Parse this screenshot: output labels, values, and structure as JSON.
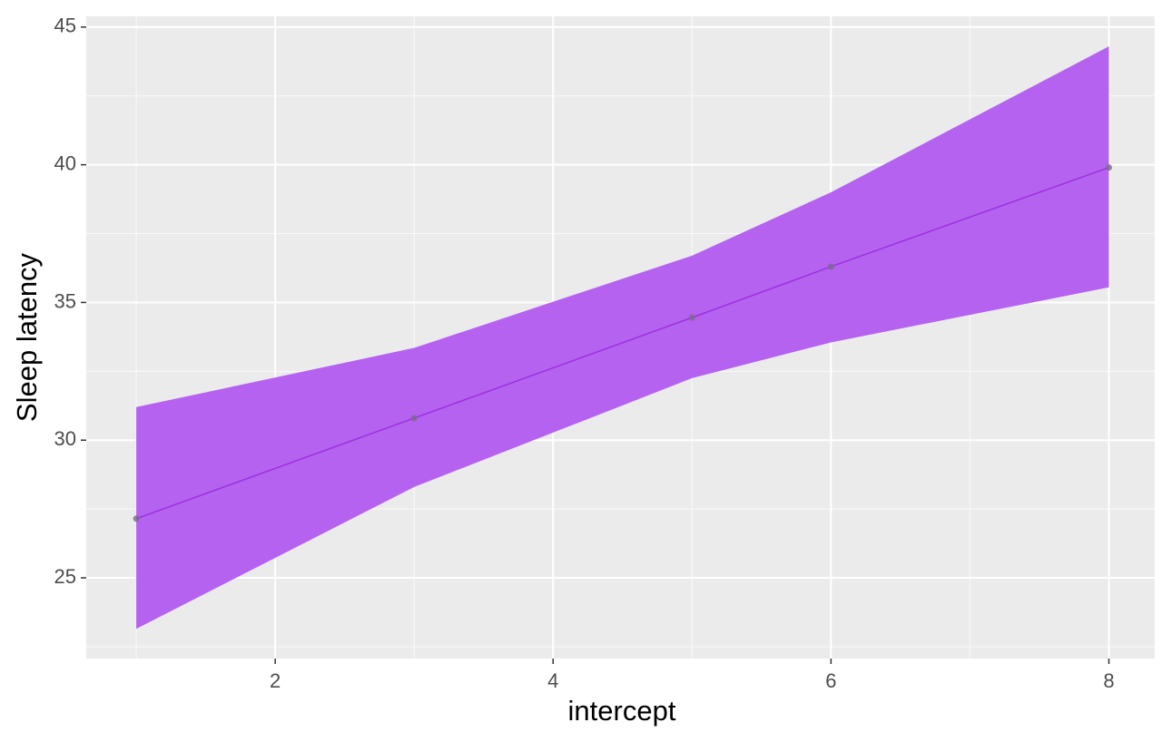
{
  "chart_data": {
    "type": "ribbon-line",
    "x_label": "intercept",
    "y_label": "Sleep latency",
    "x": [
      1,
      3,
      5,
      6,
      8
    ],
    "values": [
      27.15,
      30.8,
      34.45,
      36.3,
      39.9
    ],
    "lower": [
      23.15,
      28.3,
      32.25,
      33.55,
      35.55
    ],
    "upper": [
      31.2,
      33.35,
      36.7,
      39.0,
      44.3
    ],
    "color": "#9b30e0",
    "ribbon_color": "#b562f0",
    "point_color": "#7a6a8a",
    "xlim": [
      0.64,
      8.33
    ],
    "ylim": [
      22.07,
      45.39
    ],
    "xticks": [
      2,
      4,
      6,
      8
    ],
    "yticks": [
      25,
      30,
      35,
      40,
      45
    ],
    "minor_xticks": [
      1,
      3,
      5,
      7
    ],
    "minor_yticks": [
      22.5,
      27.5,
      32.5,
      37.5,
      42.5
    ],
    "grid": true
  }
}
